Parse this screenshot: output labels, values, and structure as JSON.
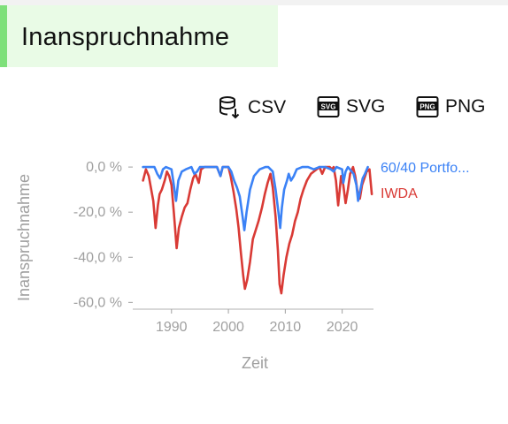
{
  "title": "Inanspruchnahme",
  "colors": {
    "title_bg": "#e9fbe6",
    "title_accent": "#7ee07a",
    "series_portfolio": "#3b82f6",
    "series_iwda": "#d93a35"
  },
  "toolbar": {
    "csv_label": "CSV",
    "svg_label": "SVG",
    "png_label": "PNG",
    "csv_icon": "database-download-icon",
    "svg_icon": "svg-file-icon",
    "png_icon": "png-file-icon"
  },
  "chart_data": {
    "type": "line",
    "xlabel": "Zeit",
    "ylabel": "Inanspruchnahme",
    "xlim": [
      1983.5,
      2025.5
    ],
    "ylim": [
      -63,
      2
    ],
    "yticks": [
      0,
      -20,
      -40,
      -60
    ],
    "ytick_labels": [
      "0,0 %",
      "-20,0 %",
      "-40,0 %",
      "-60,0 %"
    ],
    "xticks": [
      1990,
      2000,
      2010,
      2020
    ],
    "xtick_labels": [
      "1990",
      "2000",
      "2010",
      "2020"
    ],
    "legend_position": "right",
    "grid": false,
    "series": [
      {
        "name": "60/40 Portfo...",
        "color": "#3b82f6",
        "x": [
          1985.0,
          1986.0,
          1987.0,
          1987.5,
          1988.0,
          1988.5,
          1989.0,
          1990.0,
          1990.3,
          1990.8,
          1991.2,
          1991.8,
          1992.5,
          1993.5,
          1994.0,
          1994.5,
          1995.0,
          1996.0,
          1997.0,
          1998.0,
          1998.6,
          1999.0,
          1999.5,
          2000.0,
          2000.5,
          2001.0,
          2001.5,
          2002.0,
          2002.5,
          2002.8,
          2003.2,
          2003.8,
          2004.5,
          2005.5,
          2006.5,
          2007.0,
          2007.8,
          2008.3,
          2008.8,
          2009.1,
          2009.4,
          2009.8,
          2010.3,
          2010.6,
          2011.0,
          2011.5,
          2012.0,
          2013.0,
          2014.0,
          2015.0,
          2016.0,
          2017.0,
          2018.0,
          2018.5,
          2019.0,
          2020.0,
          2020.2,
          2020.6,
          2021.0,
          2022.0,
          2022.5,
          2022.8,
          2023.2,
          2023.6,
          2024.0,
          2024.5
        ],
        "y": [
          0,
          0,
          0,
          -3,
          -5,
          -1,
          0,
          -1,
          -6,
          -15,
          -6,
          -2,
          -1,
          0,
          -3,
          -2,
          0,
          0,
          0,
          0,
          -4,
          0,
          0,
          0,
          -2,
          -6,
          -9,
          -13,
          -22,
          -28,
          -20,
          -10,
          -4,
          -1,
          0,
          0,
          -2,
          -10,
          -20,
          -27,
          -18,
          -10,
          -6,
          -3,
          -6,
          -4,
          -1,
          0,
          0,
          -1,
          0,
          0,
          -1,
          -2,
          0,
          -1,
          -7,
          -2,
          0,
          -3,
          -8,
          -15,
          -10,
          -5,
          -3,
          0
        ]
      },
      {
        "name": "IWDA",
        "color": "#d93a35",
        "x": [
          1985.0,
          1985.5,
          1986.0,
          1986.8,
          1987.2,
          1987.6,
          1987.9,
          1988.3,
          1988.8,
          1989.2,
          1989.6,
          1990.0,
          1990.4,
          1990.9,
          1991.3,
          1991.8,
          1992.3,
          1992.8,
          1993.3,
          1993.8,
          1994.2,
          1994.8,
          1995.2,
          1995.8,
          1996.4,
          1997.0,
          1997.5,
          1998.0,
          1998.6,
          1999.0,
          1999.6,
          2000.0,
          2000.4,
          2000.9,
          2001.4,
          2001.8,
          2002.2,
          2002.6,
          2002.9,
          2003.3,
          2003.8,
          2004.3,
          2004.8,
          2005.3,
          2005.9,
          2006.4,
          2006.9,
          2007.4,
          2007.8,
          2008.3,
          2008.7,
          2009.0,
          2009.3,
          2009.7,
          2010.2,
          2010.7,
          2011.2,
          2011.7,
          2012.2,
          2012.7,
          2013.2,
          2013.8,
          2014.5,
          2015.0,
          2015.5,
          2016.0,
          2016.5,
          2017.0,
          2017.8,
          2018.2,
          2018.5,
          2018.9,
          2019.3,
          2019.8,
          2020.2,
          2020.6,
          2021.0,
          2021.4,
          2021.9,
          2022.3,
          2022.7,
          2023.1,
          2023.5,
          2023.9,
          2024.3,
          2024.8,
          2025.2
        ],
        "y": [
          -6,
          -1,
          -4,
          -15,
          -27,
          -17,
          -12,
          -10,
          -6,
          -2,
          -4,
          -8,
          -20,
          -36,
          -27,
          -22,
          -18,
          -16,
          -10,
          -5,
          -3,
          -7,
          -1,
          0,
          0,
          0,
          0,
          0,
          -4,
          0,
          0,
          0,
          -4,
          -11,
          -19,
          -27,
          -38,
          -48,
          -54,
          -50,
          -42,
          -32,
          -28,
          -24,
          -18,
          -12,
          -7,
          -3,
          -9,
          -22,
          -37,
          -52,
          -56,
          -48,
          -40,
          -34,
          -30,
          -24,
          -20,
          -14,
          -10,
          -6,
          -3,
          -2,
          -1,
          0,
          -3,
          0,
          0,
          -1,
          0,
          -6,
          -17,
          -4,
          -8,
          -16,
          -10,
          -3,
          0,
          -4,
          -11,
          -14,
          -8,
          -5,
          -2,
          -1,
          -12
        ]
      }
    ]
  }
}
